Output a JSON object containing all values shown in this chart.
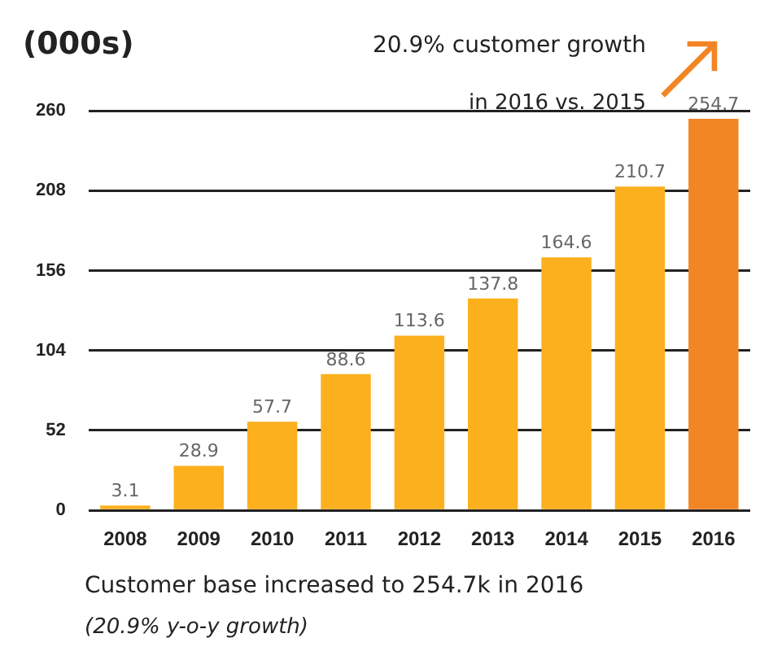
{
  "chart_data": {
    "type": "bar",
    "ylabel": "(000s)",
    "categories": [
      "2008",
      "2009",
      "2010",
      "2011",
      "2012",
      "2013",
      "2014",
      "2015",
      "2016"
    ],
    "values": [
      3.1,
      28.9,
      57.7,
      88.6,
      113.6,
      137.8,
      164.6,
      210.7,
      254.7
    ],
    "colors": [
      "#fcb01e",
      "#fcb01e",
      "#fcb01e",
      "#fcb01e",
      "#fcb01e",
      "#fcb01e",
      "#fcb01e",
      "#fcb01e",
      "#f28524"
    ],
    "ylim": [
      0,
      260
    ],
    "yticks": [
      0,
      52,
      104,
      156,
      208,
      260
    ],
    "grid": "y",
    "data_labels": true,
    "annotations": [
      "20.9% customer growth",
      "in 2016 vs. 2015",
      "Customer base increased to 254.7k in 2016",
      "(20.9% y-o-y growth)"
    ]
  }
}
